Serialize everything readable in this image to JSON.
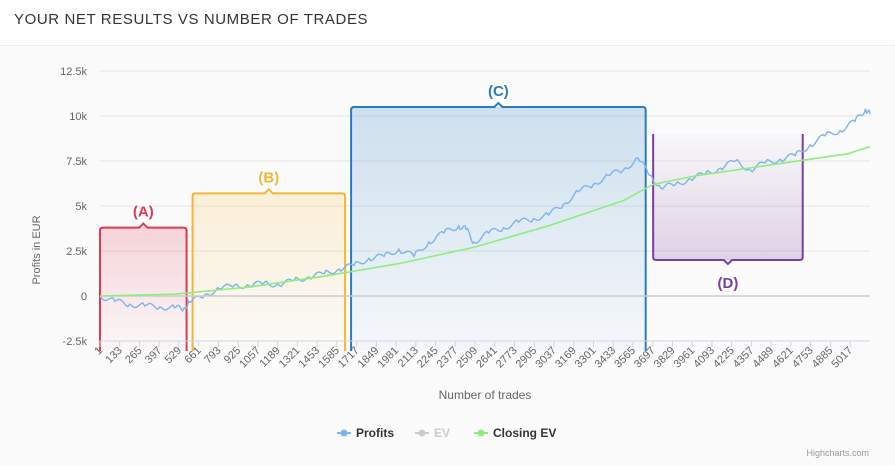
{
  "page": {
    "title": "YOUR NET RESULTS VS NUMBER OF TRADES",
    "credits": "Highcharts.com"
  },
  "colors": {
    "profits": "#7cb5ec",
    "ev": "#cccccc",
    "closing_ev": "#90ed7d",
    "zone_a": "#e0384e",
    "zone_b": "#f2b634",
    "zone_c": "#2b7bbf",
    "zone_d": "#7a3f9d",
    "grid": "#e6e6e6",
    "axis_text": "#666666"
  },
  "chart_data": {
    "type": "line",
    "xlabel": "Number of trades",
    "ylabel": "Profits in EUR",
    "xlim": [
      1,
      5150
    ],
    "ylim": [
      -2500,
      12500
    ],
    "yticks": [
      -2500,
      0,
      2500,
      5000,
      7500,
      10000,
      12500
    ],
    "ytick_labels": [
      "-2.5k",
      "0",
      "2.5k",
      "5k",
      "7.5k",
      "10k",
      "12.5k"
    ],
    "xticks": [
      "1",
      "133",
      "265",
      "397",
      "529",
      "661",
      "793",
      "925",
      "1057",
      "1189",
      "1321",
      "1453",
      "1585",
      "1717",
      "1849",
      "1981",
      "2113",
      "2245",
      "2377",
      "2509",
      "2641",
      "2773",
      "2905",
      "3037",
      "3169",
      "3301",
      "3433",
      "3565",
      "3697",
      "3829",
      "3961",
      "4093",
      "4225",
      "4357",
      "4489",
      "4621",
      "4753",
      "4885",
      "5017"
    ],
    "grid": true,
    "legend_position": "bottom-center",
    "legend": [
      "Profits",
      "EV",
      "Closing EV"
    ],
    "series": [
      {
        "name": "Profits",
        "x": [
          1,
          100,
          200,
          300,
          400,
          500,
          560,
          600,
          700,
          800,
          900,
          1000,
          1100,
          1200,
          1300,
          1400,
          1500,
          1600,
          1700,
          1800,
          1900,
          2000,
          2100,
          2200,
          2300,
          2400,
          2450,
          2500,
          2600,
          2700,
          2800,
          2900,
          3000,
          3100,
          3200,
          3300,
          3400,
          3500,
          3600,
          3680,
          3750,
          3850,
          3950,
          4050,
          4150,
          4250,
          4350,
          4450,
          4550,
          4650,
          4750,
          4850,
          4950,
          5050,
          5120,
          5150
        ],
        "values": [
          0,
          -300,
          -450,
          -550,
          -600,
          -650,
          -700,
          -350,
          50,
          400,
          600,
          550,
          750,
          600,
          900,
          1050,
          1250,
          1500,
          1700,
          2100,
          2200,
          2600,
          2200,
          3000,
          3500,
          3900,
          3700,
          3000,
          3500,
          3800,
          4100,
          4300,
          4500,
          5100,
          5800,
          6200,
          6700,
          7000,
          7650,
          6700,
          6000,
          6200,
          6500,
          6800,
          7100,
          7500,
          7000,
          7400,
          7600,
          7800,
          8400,
          8900,
          9200,
          9700,
          10400,
          10100
        ]
      },
      {
        "name": "EV",
        "x": [
          1,
          5150
        ],
        "values": [
          0,
          0
        ]
      },
      {
        "name": "Closing EV",
        "x": [
          1,
          500,
          1000,
          1500,
          2000,
          2500,
          3000,
          3500,
          3700,
          4000,
          4500,
          5000,
          5150
        ],
        "values": [
          0,
          100,
          500,
          1100,
          1800,
          2700,
          3900,
          5300,
          6200,
          6700,
          7300,
          7900,
          8300
        ]
      }
    ],
    "annotations": [
      {
        "label": "(A)",
        "x_start": 1,
        "x_end": 580,
        "y_top": 3800,
        "direction": "up"
      },
      {
        "label": "(B)",
        "x_start": 620,
        "x_end": 1640,
        "y_top": 5700,
        "direction": "up"
      },
      {
        "label": "(C)",
        "x_start": 1680,
        "x_end": 3650,
        "y_top": 10500,
        "direction": "up"
      },
      {
        "label": "(D)",
        "x_start": 3700,
        "x_end": 4700,
        "y_top": 2000,
        "direction": "down"
      }
    ]
  }
}
